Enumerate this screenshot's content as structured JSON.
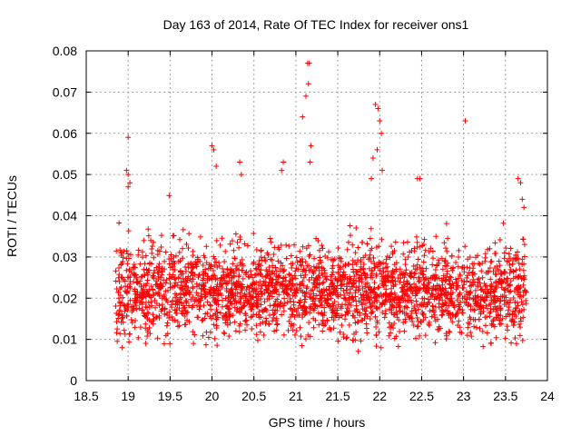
{
  "chart_data": {
    "type": "scatter",
    "title": "Day 163 of 2014, Rate Of TEC Index for receiver ons1",
    "xlabel": "GPS time / hours",
    "ylabel": "ROTI / TECUs",
    "xlim": [
      18.5,
      24
    ],
    "ylim": [
      0,
      0.08
    ],
    "xticks": [
      "18.5",
      "19",
      "19.5",
      "20",
      "20.5",
      "21",
      "21.5",
      "22",
      "22.5",
      "23",
      "23.5",
      "24"
    ],
    "xtick_values": [
      18.5,
      19,
      19.5,
      20,
      20.5,
      21,
      21.5,
      22,
      22.5,
      23,
      23.5,
      24
    ],
    "yticks": [
      "0",
      "0.01",
      "0.02",
      "0.03",
      "0.04",
      "0.05",
      "0.06",
      "0.07",
      "0.08"
    ],
    "ytick_values": [
      0,
      0.01,
      0.02,
      0.03,
      0.04,
      0.05,
      0.06,
      0.07,
      0.08
    ],
    "grid": true,
    "marker": "+",
    "color": "#ff0000",
    "series": [
      {
        "name": "ons1",
        "x_range": [
          18.85,
          23.75
        ],
        "bulk_y_range": [
          0.006,
          0.035
        ],
        "notable_points": [
          {
            "x": 19.0,
            "y": 0.059
          },
          {
            "x": 18.98,
            "y": 0.051
          },
          {
            "x": 19.0,
            "y": 0.05
          },
          {
            "x": 19.02,
            "y": 0.048
          },
          {
            "x": 19.0,
            "y": 0.047
          },
          {
            "x": 20.0,
            "y": 0.057
          },
          {
            "x": 20.02,
            "y": 0.056
          },
          {
            "x": 20.05,
            "y": 0.052
          },
          {
            "x": 20.33,
            "y": 0.053
          },
          {
            "x": 20.35,
            "y": 0.05
          },
          {
            "x": 20.85,
            "y": 0.053
          },
          {
            "x": 20.83,
            "y": 0.051
          },
          {
            "x": 21.08,
            "y": 0.064
          },
          {
            "x": 21.12,
            "y": 0.069
          },
          {
            "x": 21.15,
            "y": 0.072
          },
          {
            "x": 21.14,
            "y": 0.077
          },
          {
            "x": 21.16,
            "y": 0.077
          },
          {
            "x": 21.18,
            "y": 0.057
          },
          {
            "x": 21.17,
            "y": 0.053
          },
          {
            "x": 21.95,
            "y": 0.067
          },
          {
            "x": 21.98,
            "y": 0.066
          },
          {
            "x": 22.0,
            "y": 0.063
          },
          {
            "x": 22.02,
            "y": 0.06
          },
          {
            "x": 21.97,
            "y": 0.056
          },
          {
            "x": 21.92,
            "y": 0.054
          },
          {
            "x": 22.03,
            "y": 0.051
          },
          {
            "x": 21.9,
            "y": 0.049
          },
          {
            "x": 22.45,
            "y": 0.049
          },
          {
            "x": 22.48,
            "y": 0.049
          },
          {
            "x": 23.02,
            "y": 0.063
          },
          {
            "x": 23.65,
            "y": 0.049
          },
          {
            "x": 23.68,
            "y": 0.048
          },
          {
            "x": 23.7,
            "y": 0.044
          },
          {
            "x": 23.72,
            "y": 0.042
          }
        ]
      }
    ]
  }
}
